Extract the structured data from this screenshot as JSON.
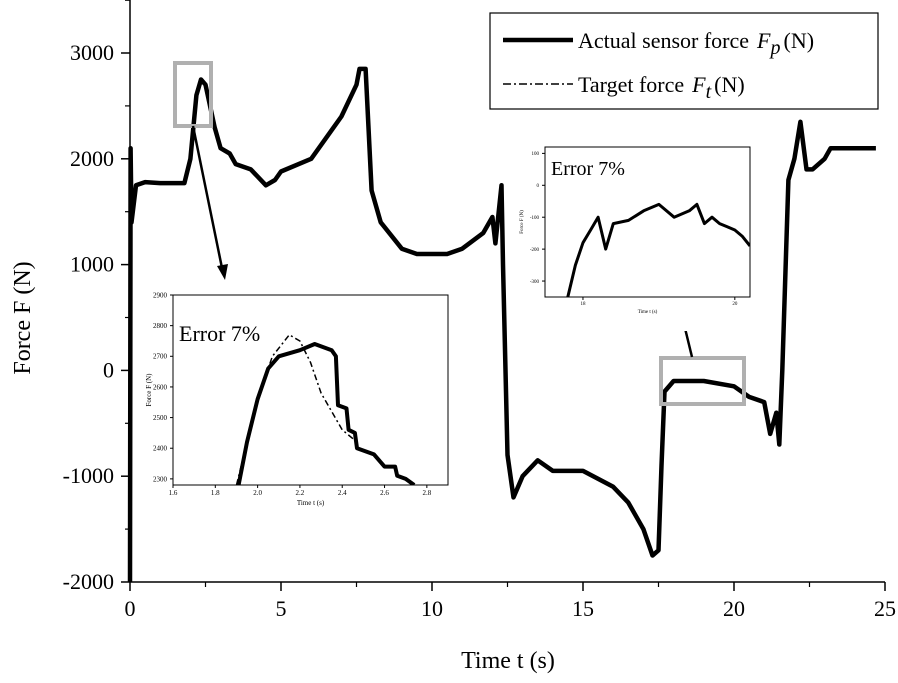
{
  "chart_data": {
    "type": "line",
    "xlabel": "Time  t (s)",
    "ylabel": "Force  F (N)",
    "xlim": [
      0,
      25
    ],
    "ylim": [
      -2000,
      3500
    ],
    "xticks": [
      "0",
      "5",
      "10",
      "15",
      "20",
      "25"
    ],
    "yticks": [
      "-2000",
      "-1000",
      "0",
      "1000",
      "2000",
      "3000"
    ],
    "legend": {
      "placement": "top-right",
      "entries": [
        {
          "label": "Actual sensor force",
          "symbol": "F",
          "sub": "p",
          "unit": "(N)",
          "style": "solid-thick"
        },
        {
          "label": "Target force",
          "symbol": "F",
          "sub": "t",
          "unit": "(N)",
          "style": "dash-dot"
        }
      ]
    },
    "series": [
      {
        "name": "Actual sensor force Fp (N)",
        "x": [
          0,
          0.02,
          0.05,
          0.2,
          0.5,
          1.0,
          1.8,
          2.0,
          2.2,
          2.35,
          2.5,
          2.8,
          3.0,
          3.3,
          3.5,
          4.0,
          4.5,
          4.8,
          5.0,
          6.0,
          7.0,
          7.5,
          7.6,
          7.8,
          8.0,
          8.3,
          9.0,
          9.5,
          10.5,
          11.0,
          11.7,
          12.0,
          12.1,
          12.3,
          12.35,
          12.5,
          12.7,
          13.0,
          13.5,
          14.0,
          15.0,
          16.0,
          16.5,
          17.0,
          17.3,
          17.5,
          17.6,
          17.7,
          18.0,
          19.0,
          20.0,
          20.5,
          21.0,
          21.2,
          21.4,
          21.5,
          21.6,
          21.8,
          22.0,
          22.2,
          22.4,
          22.6,
          23.0,
          23.2,
          24.0,
          24.7
        ],
        "y": [
          -2000,
          2100,
          1400,
          1750,
          1780,
          1770,
          1770,
          2000,
          2600,
          2750,
          2700,
          2300,
          2100,
          2050,
          1950,
          1900,
          1750,
          1800,
          1880,
          2000,
          2400,
          2700,
          2850,
          2850,
          1700,
          1400,
          1150,
          1100,
          1100,
          1150,
          1300,
          1450,
          1200,
          1750,
          1000,
          -800,
          -1200,
          -1000,
          -850,
          -950,
          -950,
          -1100,
          -1250,
          -1500,
          -1750,
          -1700,
          -900,
          -200,
          -100,
          -100,
          -150,
          -250,
          -300,
          -600,
          -400,
          -700,
          0,
          1800,
          2000,
          2350,
          1900,
          1900,
          2000,
          2100,
          2100,
          2100
        ]
      }
    ],
    "annotations": [
      {
        "title": "Error 7%",
        "xlabel": "Time  t (s)",
        "ylabel": "Force  F (N)",
        "xlim": [
          1.6,
          2.9
        ],
        "ylim": [
          2280,
          2900
        ],
        "xticks": [
          "1.6",
          "1.8",
          "2.0",
          "2.2",
          "2.4",
          "2.6",
          "2.8"
        ],
        "yticks": [
          "2300",
          "2400",
          "2500",
          "2600",
          "2700",
          "2800",
          "2900"
        ],
        "series": [
          {
            "name": "Actual",
            "x": [
              1.91,
              1.95,
              2.0,
              2.05,
              2.1,
              2.2,
              2.27,
              2.35,
              2.37,
              2.38,
              2.42,
              2.43,
              2.46,
              2.47,
              2.55,
              2.6,
              2.65,
              2.66,
              2.7,
              2.74
            ],
            "y": [
              2280,
              2420,
              2560,
              2660,
              2700,
              2720,
              2740,
              2720,
              2700,
              2540,
              2530,
              2460,
              2450,
              2400,
              2380,
              2340,
              2340,
              2310,
              2300,
              2280
            ]
          },
          {
            "name": "Target",
            "x": [
              1.9,
              2.0,
              2.07,
              2.15,
              2.2,
              2.25,
              2.3,
              2.4,
              2.47
            ],
            "y": [
              2280,
              2560,
              2700,
              2770,
              2750,
              2680,
              2580,
              2460,
              2420
            ]
          }
        ]
      },
      {
        "title": "Error 7%",
        "xlabel": "Time  t (s)",
        "ylabel": "Force  F (N)",
        "xlim": [
          17.5,
          20.2
        ],
        "ylim": [
          -350,
          120
        ],
        "xticks": [
          "18",
          "20"
        ],
        "yticks": [
          "100",
          "0",
          "-100",
          "-200",
          "-300"
        ],
        "series": [
          {
            "name": "Actual",
            "x": [
              17.8,
              17.9,
              18.0,
              18.1,
              18.2,
              18.3,
              18.4,
              18.6,
              18.8,
              19.0,
              19.2,
              19.4,
              19.5,
              19.6,
              19.7,
              19.8,
              19.9,
              20.0,
              20.1,
              20.2
            ],
            "y": [
              -350,
              -250,
              -180,
              -140,
              -100,
              -200,
              -120,
              -110,
              -80,
              -60,
              -100,
              -80,
              -60,
              -120,
              -100,
              -120,
              -130,
              -140,
              -160,
              -190
            ]
          }
        ]
      }
    ]
  }
}
